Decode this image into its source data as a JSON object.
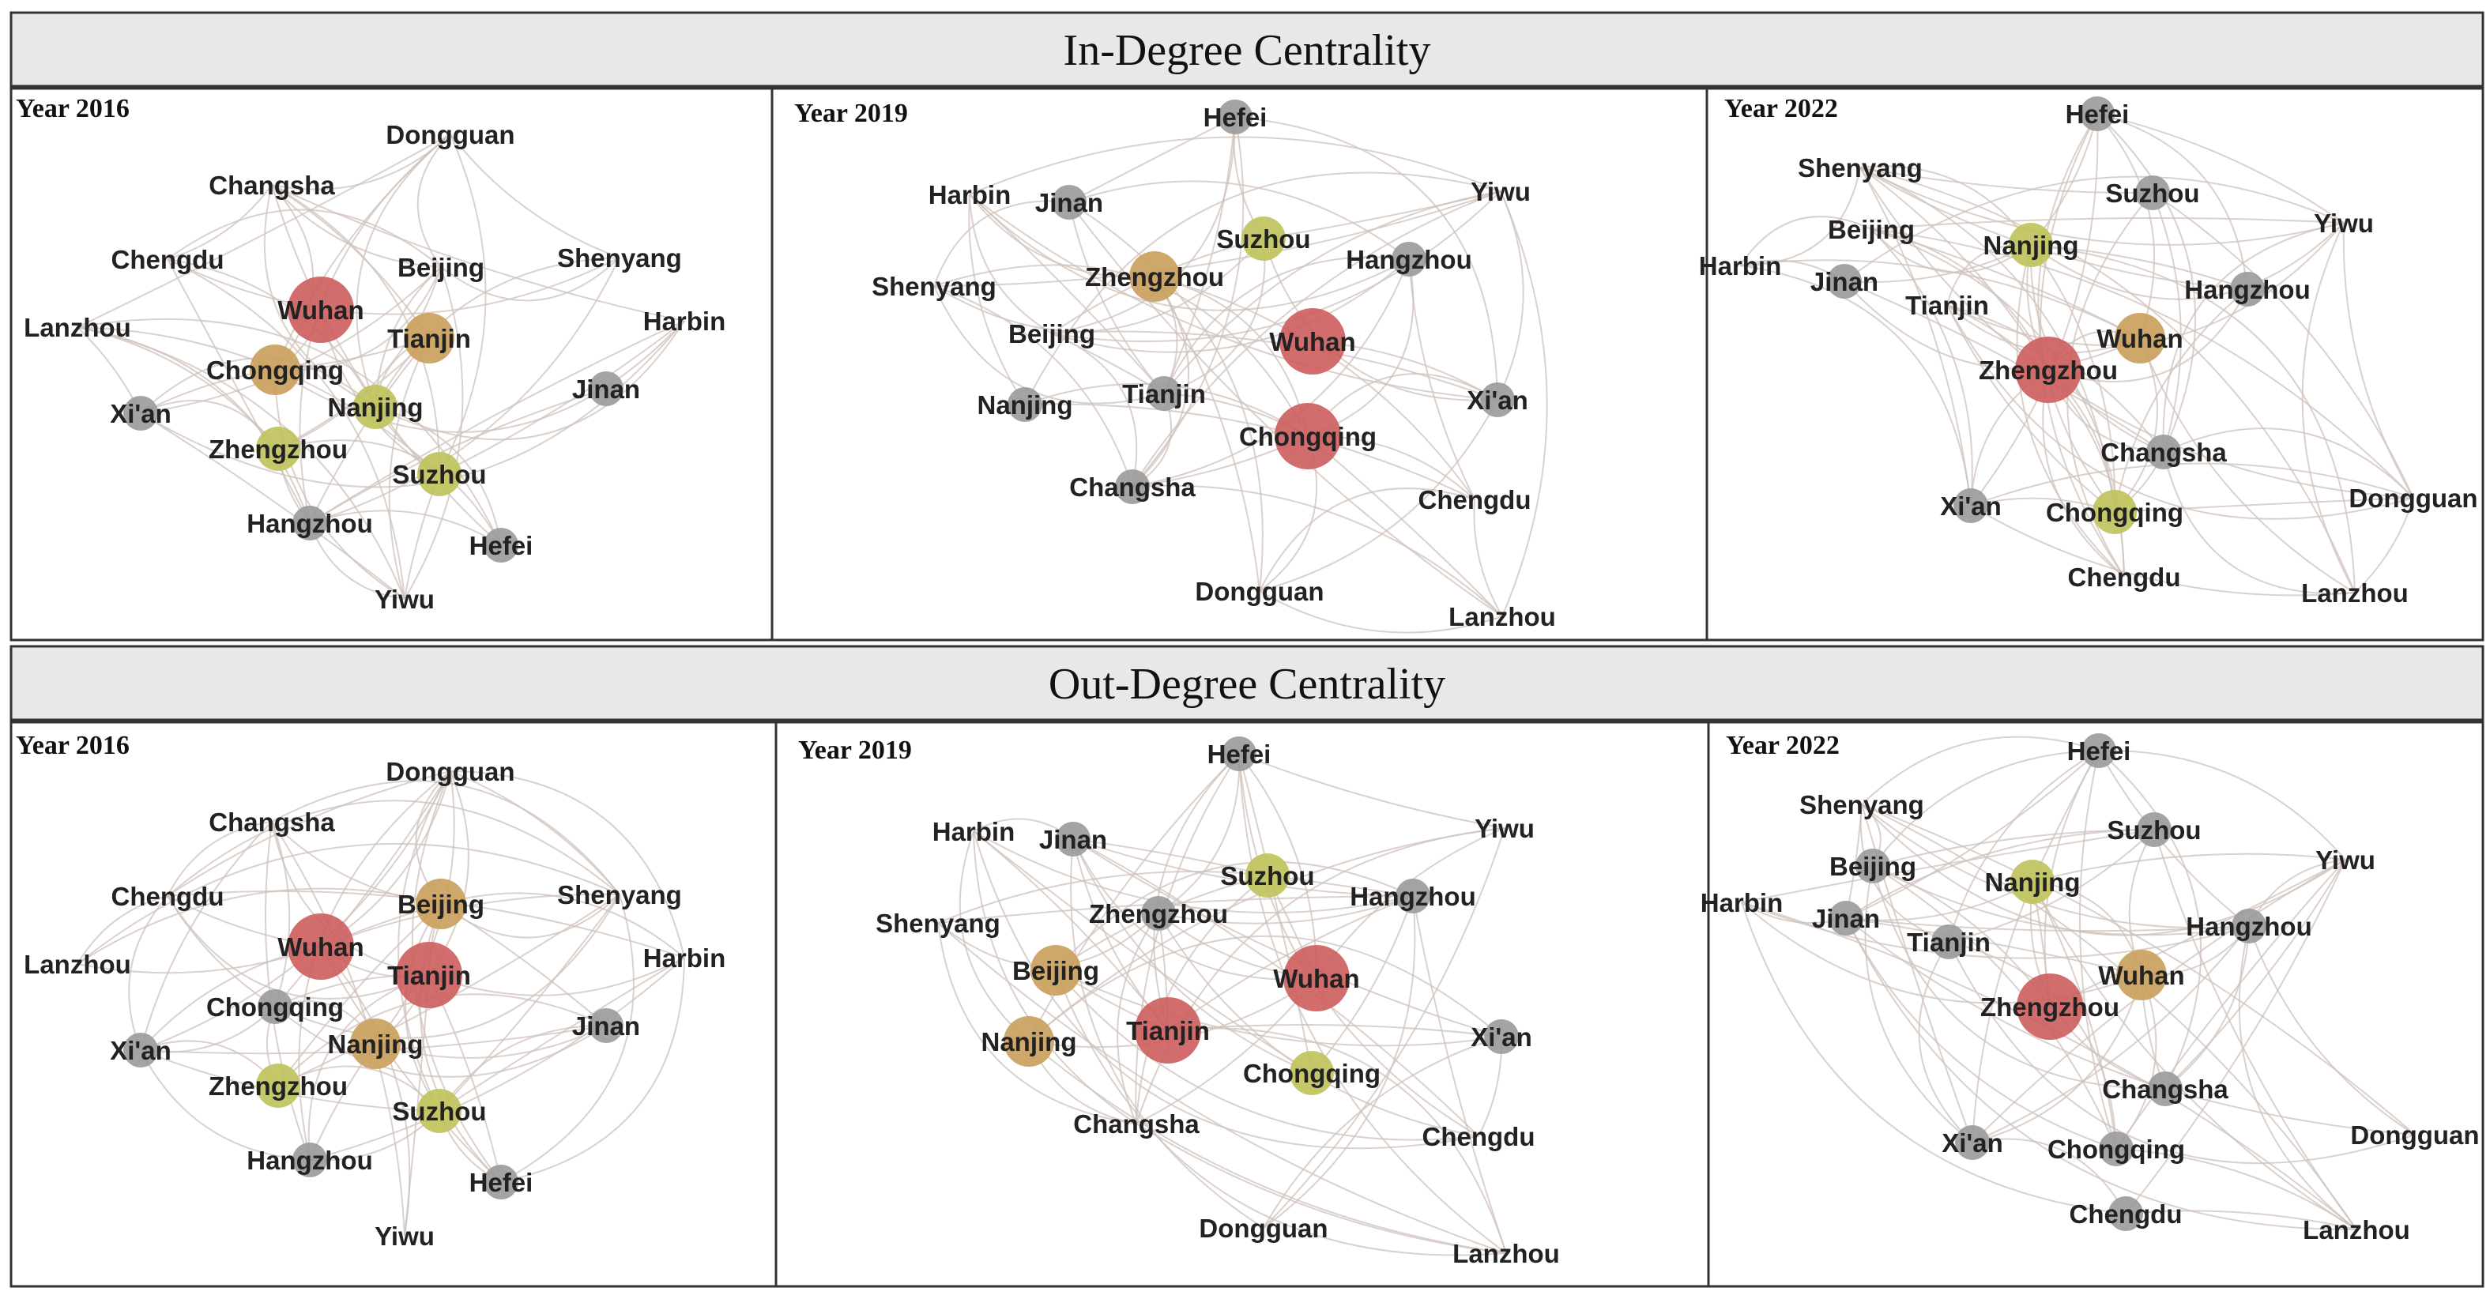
{
  "colors": {
    "red": "#cc5d5d",
    "tan": "#c99f5b",
    "olive": "#bfc25a",
    "gray": "#9a9a9a",
    "edge": "#cfc2bb",
    "header_bg": "#e8e8e8"
  },
  "sections": [
    {
      "title": "In-Degree Centrality",
      "panels": [
        {
          "year": "Year 2016",
          "nodes": [
            {
              "name": "Dongguan",
              "level": "none"
            },
            {
              "name": "Changsha",
              "level": "none"
            },
            {
              "name": "Chengdu",
              "level": "none"
            },
            {
              "name": "Shenyang",
              "level": "none"
            },
            {
              "name": "Beijing",
              "level": "none"
            },
            {
              "name": "Wuhan",
              "level": "red"
            },
            {
              "name": "Lanzhou",
              "level": "none"
            },
            {
              "name": "Harbin",
              "level": "none"
            },
            {
              "name": "Tianjin",
              "level": "tan"
            },
            {
              "name": "Chongqing",
              "level": "tan"
            },
            {
              "name": "Jinan",
              "level": "gray"
            },
            {
              "name": "Nanjing",
              "level": "olive"
            },
            {
              "name": "Xi'an",
              "level": "gray"
            },
            {
              "name": "Zhengzhou",
              "level": "olive"
            },
            {
              "name": "Suzhou",
              "level": "olive"
            },
            {
              "name": "Hangzhou",
              "level": "gray"
            },
            {
              "name": "Hefei",
              "level": "gray"
            },
            {
              "name": "Yiwu",
              "level": "none"
            }
          ]
        },
        {
          "year": "Year 2019",
          "nodes": [
            {
              "name": "Hefei",
              "level": "gray"
            },
            {
              "name": "Harbin",
              "level": "none"
            },
            {
              "name": "Jinan",
              "level": "gray"
            },
            {
              "name": "Yiwu",
              "level": "none"
            },
            {
              "name": "Suzhou",
              "level": "olive"
            },
            {
              "name": "Hangzhou",
              "level": "gray"
            },
            {
              "name": "Zhengzhou",
              "level": "tan"
            },
            {
              "name": "Shenyang",
              "level": "none"
            },
            {
              "name": "Beijing",
              "level": "none"
            },
            {
              "name": "Wuhan",
              "level": "red"
            },
            {
              "name": "Tianjin",
              "level": "gray"
            },
            {
              "name": "Nanjing",
              "level": "gray"
            },
            {
              "name": "Xi'an",
              "level": "gray"
            },
            {
              "name": "Chongqing",
              "level": "red"
            },
            {
              "name": "Changsha",
              "level": "gray"
            },
            {
              "name": "Chengdu",
              "level": "none"
            },
            {
              "name": "Dongguan",
              "level": "none"
            },
            {
              "name": "Lanzhou",
              "level": "none"
            }
          ]
        },
        {
          "year": "Year 2022",
          "nodes": [
            {
              "name": "Hefei",
              "level": "gray"
            },
            {
              "name": "Shenyang",
              "level": "none"
            },
            {
              "name": "Suzhou",
              "level": "gray"
            },
            {
              "name": "Yiwu",
              "level": "none"
            },
            {
              "name": "Beijing",
              "level": "none"
            },
            {
              "name": "Nanjing",
              "level": "olive"
            },
            {
              "name": "Harbin",
              "level": "none"
            },
            {
              "name": "Jinan",
              "level": "gray"
            },
            {
              "name": "Hangzhou",
              "level": "gray"
            },
            {
              "name": "Tianjin",
              "level": "none"
            },
            {
              "name": "Wuhan",
              "level": "tan"
            },
            {
              "name": "Zhengzhou",
              "level": "red"
            },
            {
              "name": "Changsha",
              "level": "gray"
            },
            {
              "name": "Dongguan",
              "level": "none"
            },
            {
              "name": "Xi'an",
              "level": "gray"
            },
            {
              "name": "Chongqing",
              "level": "olive"
            },
            {
              "name": "Chengdu",
              "level": "none"
            },
            {
              "name": "Lanzhou",
              "level": "none"
            }
          ]
        }
      ]
    },
    {
      "title": "Out-Degree Centrality",
      "panels": [
        {
          "year": "Year 2016",
          "nodes": [
            {
              "name": "Dongguan",
              "level": "none"
            },
            {
              "name": "Changsha",
              "level": "none"
            },
            {
              "name": "Chengdu",
              "level": "none"
            },
            {
              "name": "Beijing",
              "level": "tan"
            },
            {
              "name": "Shenyang",
              "level": "none"
            },
            {
              "name": "Wuhan",
              "level": "red"
            },
            {
              "name": "Lanzhou",
              "level": "none"
            },
            {
              "name": "Tianjin",
              "level": "red"
            },
            {
              "name": "Harbin",
              "level": "none"
            },
            {
              "name": "Chongqing",
              "level": "gray"
            },
            {
              "name": "Jinan",
              "level": "gray"
            },
            {
              "name": "Nanjing",
              "level": "tan"
            },
            {
              "name": "Xi'an",
              "level": "gray"
            },
            {
              "name": "Zhengzhou",
              "level": "olive"
            },
            {
              "name": "Suzhou",
              "level": "olive"
            },
            {
              "name": "Hangzhou",
              "level": "gray"
            },
            {
              "name": "Hefei",
              "level": "gray"
            },
            {
              "name": "Yiwu",
              "level": "none"
            }
          ]
        },
        {
          "year": "Year 2019",
          "nodes": [
            {
              "name": "Hefei",
              "level": "gray"
            },
            {
              "name": "Harbin",
              "level": "none"
            },
            {
              "name": "Jinan",
              "level": "gray"
            },
            {
              "name": "Yiwu",
              "level": "none"
            },
            {
              "name": "Suzhou",
              "level": "olive"
            },
            {
              "name": "Hangzhou",
              "level": "gray"
            },
            {
              "name": "Zhengzhou",
              "level": "gray"
            },
            {
              "name": "Shenyang",
              "level": "none"
            },
            {
              "name": "Beijing",
              "level": "tan"
            },
            {
              "name": "Wuhan",
              "level": "red"
            },
            {
              "name": "Tianjin",
              "level": "red"
            },
            {
              "name": "Nanjing",
              "level": "tan"
            },
            {
              "name": "Xi'an",
              "level": "gray"
            },
            {
              "name": "Chongqing",
              "level": "olive"
            },
            {
              "name": "Changsha",
              "level": "none"
            },
            {
              "name": "Chengdu",
              "level": "none"
            },
            {
              "name": "Dongguan",
              "level": "none"
            },
            {
              "name": "Lanzhou",
              "level": "none"
            }
          ]
        },
        {
          "year": "Year 2022",
          "nodes": [
            {
              "name": "Hefei",
              "level": "gray"
            },
            {
              "name": "Shenyang",
              "level": "none"
            },
            {
              "name": "Suzhou",
              "level": "gray"
            },
            {
              "name": "Yiwu",
              "level": "none"
            },
            {
              "name": "Beijing",
              "level": "gray"
            },
            {
              "name": "Nanjing",
              "level": "olive"
            },
            {
              "name": "Harbin",
              "level": "none"
            },
            {
              "name": "Jinan",
              "level": "gray"
            },
            {
              "name": "Hangzhou",
              "level": "gray"
            },
            {
              "name": "Tianjin",
              "level": "gray"
            },
            {
              "name": "Wuhan",
              "level": "tan"
            },
            {
              "name": "Zhengzhou",
              "level": "red"
            },
            {
              "name": "Changsha",
              "level": "gray"
            },
            {
              "name": "Dongguan",
              "level": "none"
            },
            {
              "name": "Xi'an",
              "level": "gray"
            },
            {
              "name": "Chongqing",
              "level": "gray"
            },
            {
              "name": "Chengdu",
              "level": "gray"
            },
            {
              "name": "Lanzhou",
              "level": "none"
            }
          ]
        }
      ]
    }
  ]
}
